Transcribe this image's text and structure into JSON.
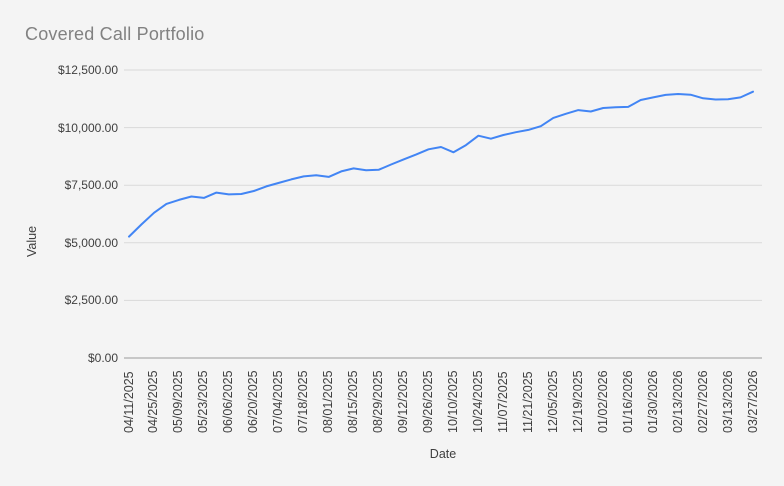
{
  "title": "Covered Call Portfolio",
  "colors": {
    "background": "#f4f4f4",
    "line": "#4285f4",
    "gridline": "#d9d9d9",
    "axis_line": "#9a9a9a",
    "title_text": "#818181",
    "tick_text": "#3f3f3f"
  },
  "chart_data": {
    "type": "line",
    "title": "Covered Call Portfolio",
    "xlabel": "Date",
    "ylabel": "Value",
    "ylim": [
      0,
      12500
    ],
    "grid": true,
    "legend": "none",
    "line_color": "#4285f4",
    "grid_color": "#d9d9d9",
    "axis_color": "#9a9a9a",
    "y_ticks": [
      {
        "value": 12500,
        "label": "$12,500.00"
      },
      {
        "value": 10000,
        "label": "$10,000.00"
      },
      {
        "value": 7500,
        "label": "$7,500.00"
      },
      {
        "value": 5000,
        "label": "$5,000.00"
      },
      {
        "value": 2500,
        "label": "$2,500.00"
      },
      {
        "value": 0,
        "label": "$0.00"
      }
    ],
    "x_tick_labels": [
      "04/11/2025",
      "04/25/2025",
      "05/09/2025",
      "05/23/2025",
      "06/06/2025",
      "06/20/2025",
      "07/04/2025",
      "07/18/2025",
      "08/01/2025",
      "08/15/2025",
      "08/29/2025",
      "09/12/2025",
      "09/26/2025",
      "10/10/2025",
      "10/24/2025",
      "11/07/2025",
      "11/21/2025",
      "12/05/2025",
      "12/19/2025",
      "01/02/2026",
      "01/16/2026",
      "01/30/2026",
      "02/13/2026",
      "02/27/2026",
      "03/13/2026",
      "03/27/2026"
    ],
    "series": [
      {
        "name": "Value",
        "x": [
          "04/11/2025",
          "04/18/2025",
          "04/25/2025",
          "05/02/2025",
          "05/09/2025",
          "05/16/2025",
          "05/23/2025",
          "05/30/2025",
          "06/06/2025",
          "06/13/2025",
          "06/20/2025",
          "06/27/2025",
          "07/04/2025",
          "07/11/2025",
          "07/18/2025",
          "07/25/2025",
          "08/01/2025",
          "08/08/2025",
          "08/15/2025",
          "08/22/2025",
          "08/29/2025",
          "09/05/2025",
          "09/12/2025",
          "09/19/2025",
          "09/26/2025",
          "10/03/2025",
          "10/10/2025",
          "10/17/2025",
          "10/24/2025",
          "10/31/2025",
          "11/07/2025",
          "11/14/2025",
          "11/21/2025",
          "11/28/2025",
          "12/05/2025",
          "12/12/2025",
          "12/19/2025",
          "12/26/2025",
          "01/02/2026",
          "01/09/2026",
          "01/16/2026",
          "01/23/2026",
          "01/30/2026",
          "02/06/2026",
          "02/13/2026",
          "02/20/2026",
          "02/27/2026",
          "03/06/2026",
          "03/13/2026",
          "03/20/2026",
          "03/27/2026"
        ],
        "values": [
          5270,
          5800,
          6300,
          6690,
          6860,
          7010,
          6950,
          7180,
          7100,
          7120,
          7250,
          7450,
          7600,
          7750,
          7880,
          7930,
          7860,
          8100,
          8230,
          8150,
          8170,
          8400,
          8620,
          8830,
          9060,
          9160,
          8930,
          9240,
          9650,
          9520,
          9680,
          9800,
          9900,
          10060,
          10420,
          10600,
          10760,
          10700,
          10850,
          10880,
          10900,
          11200,
          11310,
          11420,
          11460,
          11430,
          11270,
          11220,
          11230,
          11310,
          11560
        ]
      }
    ]
  }
}
